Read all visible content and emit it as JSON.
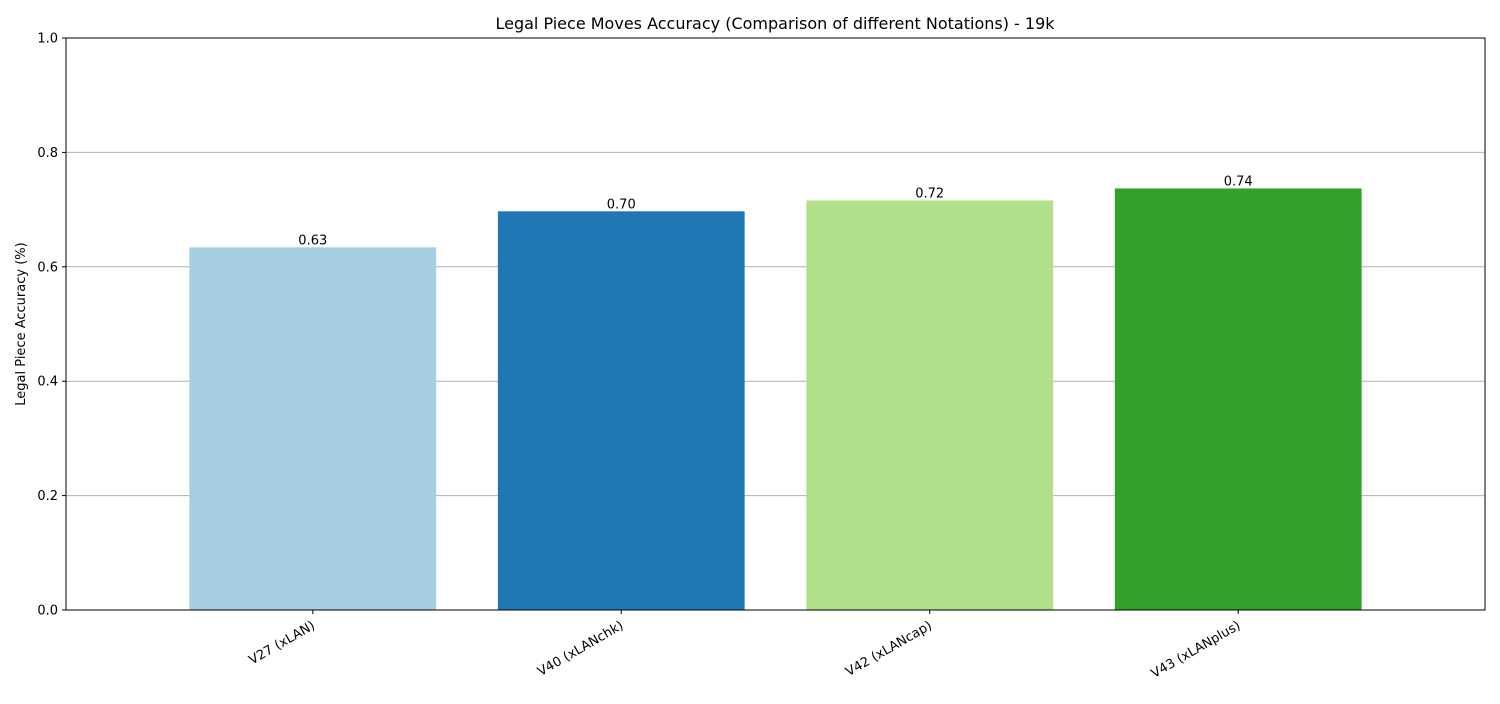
{
  "chart_data": {
    "type": "bar",
    "title": "Legal Piece Moves Accuracy (Comparison of different Notations) - 19k",
    "xlabel": "",
    "ylabel": "Legal Piece Accuracy (%)",
    "ylim": [
      0,
      1.0
    ],
    "yticks": [
      "0.0",
      "0.2",
      "0.4",
      "0.6",
      "0.8",
      "1.0"
    ],
    "grid": "y",
    "categories": [
      "V27 (xLAN)",
      "V40 (xLANchk)",
      "V42 (xLANcap)",
      "V43 (xLANplus)"
    ],
    "values": [
      0.634,
      0.697,
      0.716,
      0.737
    ],
    "data_labels": [
      "0.63",
      "0.70",
      "0.72",
      "0.74"
    ],
    "colors": [
      "#a6cee3",
      "#1f78b4",
      "#b2df8a",
      "#33a02c"
    ]
  }
}
